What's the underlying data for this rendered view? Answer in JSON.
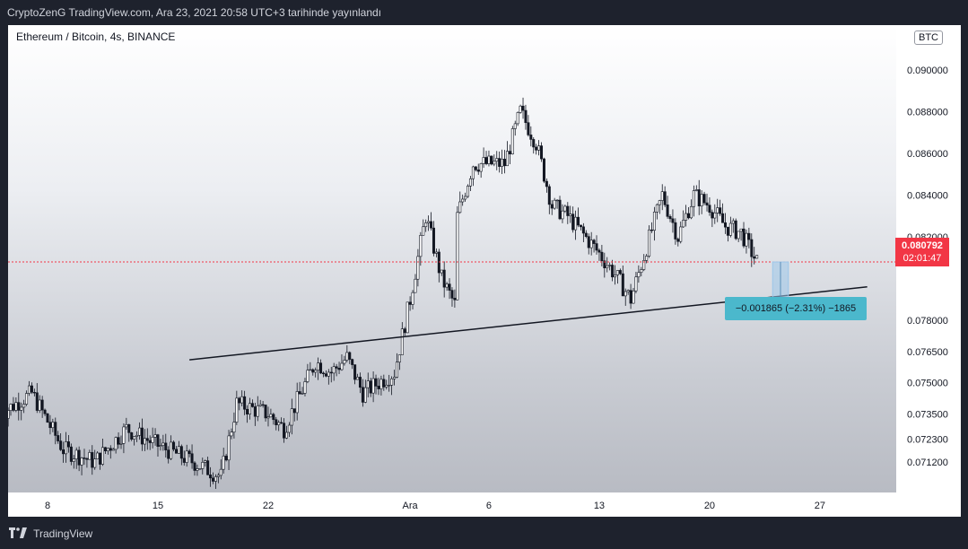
{
  "header": {
    "published_text": "CryptoZenG TradingView.com, Ara 23, 2021 20:58 UTC+3 tarihinde yayınlandı"
  },
  "footer": {
    "brand": "TradingView",
    "logo_icon": "tradingview-logo-icon"
  },
  "chart_data": {
    "type": "candlestick",
    "title": "Ethereum / Bitcoin, 4s, BINANCE",
    "currency_badge": "BTC",
    "y_ticks": [
      "0.090000",
      "0.088000",
      "0.086000",
      "0.084000",
      "0.082000",
      "0.078000",
      "0.076500",
      "0.075000",
      "0.073500",
      "0.072300",
      "0.071200"
    ],
    "y_tick_values": [
      0.09,
      0.088,
      0.086,
      0.084,
      0.082,
      0.078,
      0.0765,
      0.075,
      0.0735,
      0.0723,
      0.0712
    ],
    "x_ticks": [
      "8",
      "15",
      "22",
      "Ara",
      "6",
      "13",
      "20",
      "27"
    ],
    "last_price": "0.080792",
    "last_price_value": 0.080792,
    "countdown": "02:01:47",
    "up_color": "#ffffff",
    "down_color": "#131722",
    "price_line_color": "#f23645",
    "anchors": [
      {
        "date": "2021-11-05",
        "price": 0.0735
      },
      {
        "date": "2021-11-07",
        "price": 0.0745
      },
      {
        "date": "2021-11-09",
        "price": 0.0718
      },
      {
        "date": "2021-11-11",
        "price": 0.0712
      },
      {
        "date": "2021-11-13",
        "price": 0.0728
      },
      {
        "date": "2021-11-15",
        "price": 0.072
      },
      {
        "date": "2021-11-17",
        "price": 0.0713
      },
      {
        "date": "2021-11-19",
        "price": 0.0705
      },
      {
        "date": "2021-11-20",
        "price": 0.074
      },
      {
        "date": "2021-11-22",
        "price": 0.0735
      },
      {
        "date": "2021-11-23",
        "price": 0.0728
      },
      {
        "date": "2021-11-25",
        "price": 0.076
      },
      {
        "date": "2021-11-26",
        "price": 0.0755
      },
      {
        "date": "2021-11-27",
        "price": 0.0762
      },
      {
        "date": "2021-11-28",
        "price": 0.0745
      },
      {
        "date": "2021-11-30",
        "price": 0.0755
      },
      {
        "date": "2021-12-01",
        "price": 0.079
      },
      {
        "date": "2021-12-02",
        "price": 0.083
      },
      {
        "date": "2021-12-03",
        "price": 0.08
      },
      {
        "date": "2021-12-04",
        "price": 0.0785
      },
      {
        "date": "2021-12-04",
        "price": 0.083
      },
      {
        "date": "2021-12-05",
        "price": 0.0855
      },
      {
        "date": "2021-12-07",
        "price": 0.0855
      },
      {
        "date": "2021-12-08",
        "price": 0.088
      },
      {
        "date": "2021-12-09",
        "price": 0.0865
      },
      {
        "date": "2021-12-10",
        "price": 0.0835
      },
      {
        "date": "2021-12-11",
        "price": 0.083
      },
      {
        "date": "2021-12-13",
        "price": 0.0812
      },
      {
        "date": "2021-12-14",
        "price": 0.0802
      },
      {
        "date": "2021-12-15",
        "price": 0.079
      },
      {
        "date": "2021-12-16",
        "price": 0.0815
      },
      {
        "date": "2021-12-17",
        "price": 0.084
      },
      {
        "date": "2021-12-18",
        "price": 0.082
      },
      {
        "date": "2021-12-19",
        "price": 0.084
      },
      {
        "date": "2021-12-20",
        "price": 0.0835
      },
      {
        "date": "2021-12-21",
        "price": 0.0825
      },
      {
        "date": "2021-12-22",
        "price": 0.0822
      },
      {
        "date": "2021-12-23",
        "price": 0.0808
      }
    ],
    "trendline": {
      "start": {
        "date": "2021-11-17",
        "price": 0.0761
      },
      "end": {
        "date": "2021-12-30",
        "price": 0.0796
      }
    },
    "measurement": {
      "label": "−0.001865 (−2.31%) −1865",
      "from_date": "2021-12-24",
      "to_date": "2021-12-25",
      "from_price": 0.080792,
      "to_price": 0.078927
    }
  }
}
